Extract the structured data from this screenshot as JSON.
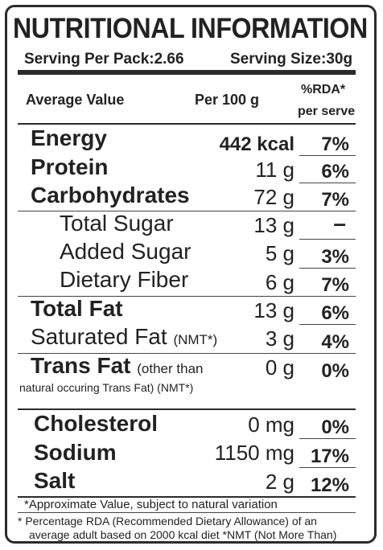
{
  "title": "NUTRITIONAL INFORMATION",
  "serving": {
    "per_pack": "Serving Per Pack:2.66",
    "size": "Serving Size:30g"
  },
  "columns": {
    "average": "Average Value",
    "per100": "Per 100 g",
    "rda_line1": "%RDA*",
    "rda_line2": "per serve"
  },
  "rows": [
    {
      "name": "Energy",
      "value": "442 kcal",
      "rda": "7%"
    },
    {
      "name": "Protein",
      "value": "11 g",
      "rda": "6%"
    },
    {
      "name": "Carbohydrates",
      "value": "72 g",
      "rda": "7%"
    },
    {
      "name": "Total Sugar",
      "value": "13 g",
      "rda": "–"
    },
    {
      "name": "Added Sugar",
      "value": "5 g",
      "rda": "3%"
    },
    {
      "name": "Dietary Fiber",
      "value": "6 g",
      "rda": "7%"
    },
    {
      "name": "Total Fat",
      "value": "13 g",
      "rda": "6%"
    },
    {
      "name": "Saturated Fat",
      "note": "(NMT*)",
      "value": "3 g",
      "rda": "4%"
    },
    {
      "name": "Trans Fat",
      "note": "(other than",
      "note2": "natural occuring Trans Fat) (NMT*)",
      "value": "0 g",
      "rda": "0%"
    },
    {
      "name": "Cholesterol",
      "value": "0 mg",
      "rda": "0%"
    },
    {
      "name": "Sodium",
      "value": "1150 mg",
      "rda": "17%"
    },
    {
      "name": "Salt",
      "value": "2 g",
      "rda": "12%"
    }
  ],
  "footnotes": {
    "approx": "*Approximate Value, subject to natural variation",
    "rda_line1": "* Percentage RDA (Recommended Dietary Allowance) of an",
    "rda_line2": "average adult based on 2000 kcal diet *NMT (Not More Than)"
  }
}
